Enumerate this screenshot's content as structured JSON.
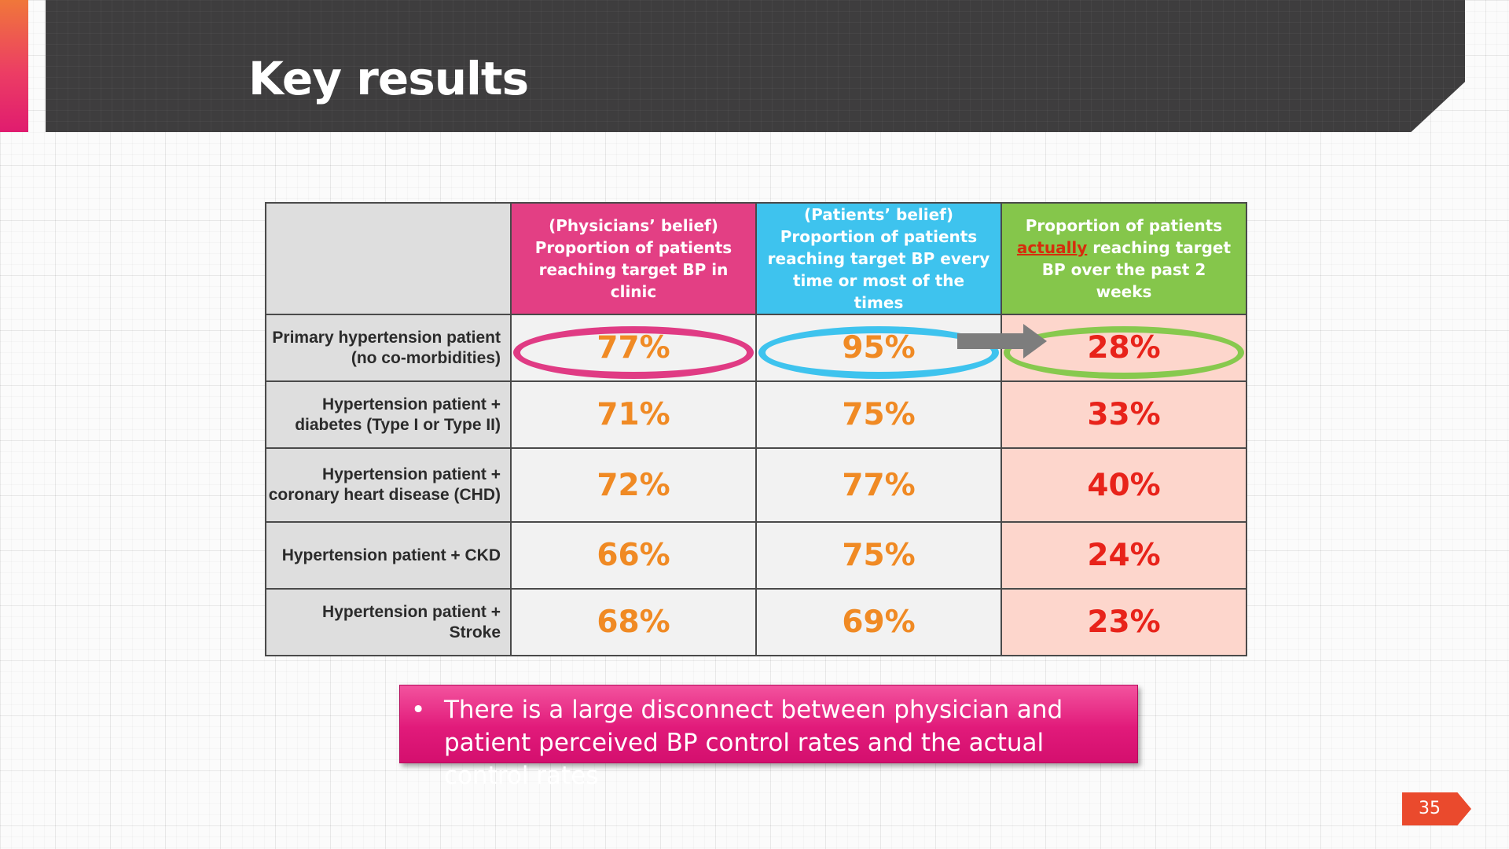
{
  "title": "Key results",
  "table": {
    "headers": {
      "physicians": "(Physicians’ belief) Proportion of patients reaching target BP in clinic",
      "patients": "(Patients’ belief) Proportion of patients reaching target BP every time or most of the times",
      "actual_prefix": "Proportion of patients",
      "actual_highlight": "actually",
      "actual_suffix": "reaching target BP over the past 2 weeks"
    },
    "rows": [
      {
        "label": "Primary hypertension patient (no co-morbidities)",
        "physicians": "77%",
        "patients": "95%",
        "actual": "28%"
      },
      {
        "label": "Hypertension patient + diabetes (Type I or Type II)",
        "physicians": "71%",
        "patients": "75%",
        "actual": "33%"
      },
      {
        "label": "Hypertension patient + coronary heart disease (CHD)",
        "physicians": "72%",
        "patients": "77%",
        "actual": "40%"
      },
      {
        "label": "Hypertension patient + CKD",
        "physicians": "66%",
        "patients": "75%",
        "actual": "24%"
      },
      {
        "label": "Hypertension patient + Stroke",
        "physicians": "68%",
        "patients": "69%",
        "actual": "23%"
      }
    ]
  },
  "callout": {
    "bullet": "•",
    "text": "There is a large disconnect between physician and patient perceived BP control rates and the actual control rates"
  },
  "page_number": "35",
  "colors": {
    "physicians": "#e33f84",
    "patients": "#3ec3ee",
    "actual": "#85c64b",
    "value_orange": "#f08a24",
    "value_red": "#e8231a"
  }
}
